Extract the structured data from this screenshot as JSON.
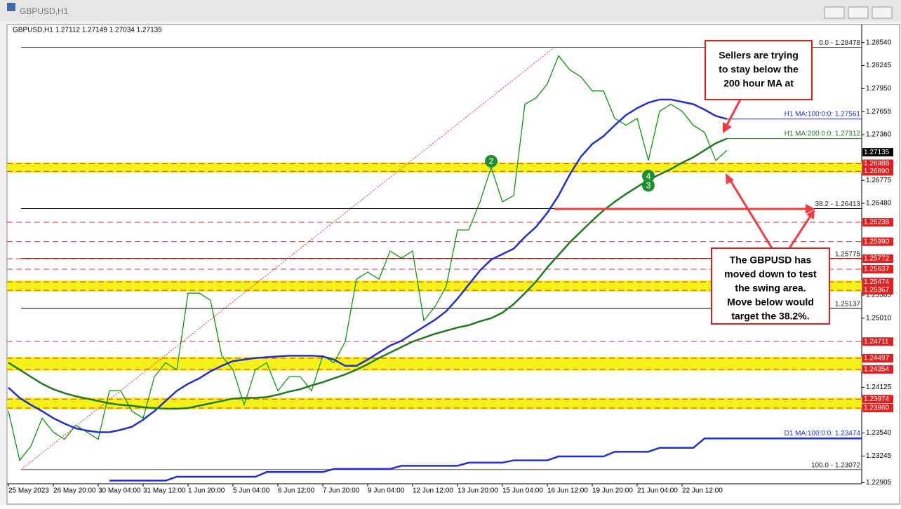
{
  "chart_data": {
    "type": "line",
    "info": "GBPUSD,H1  1.27112 1.27149 1.27034 1.27135",
    "categories": [
      "25 May 2023",
      null,
      null,
      null,
      "26 May 20:00",
      null,
      null,
      null,
      "30 May 04:00",
      null,
      null,
      null,
      "31 May 12:00",
      null,
      null,
      null,
      "1 Jun 20:00",
      null,
      null,
      null,
      "5 Jun 04:00",
      null,
      null,
      null,
      "6 Jun 12:00",
      null,
      null,
      null,
      "7 Jun 20:00",
      null,
      null,
      null,
      "9 Jun 04:00",
      null,
      null,
      null,
      "12 Jun 12:00",
      null,
      null,
      null,
      "13 Jun 20:00",
      null,
      null,
      null,
      "15 Jun 04:00",
      null,
      null,
      null,
      "16 Jun 12:00",
      null,
      null,
      null,
      "19 Jun 20:00",
      null,
      null,
      null,
      "21 Jun 04:00",
      null,
      null,
      null,
      "22 Jun 12:00",
      null,
      null,
      null,
      null
    ],
    "series": [
      {
        "name": "GBPUSD,H1",
        "color": "#0a9a0a",
        "values": [
          1.2382,
          1.2319,
          1.2337,
          1.2373,
          1.2355,
          1.2346,
          1.2364,
          1.2355,
          1.2346,
          1.2408,
          1.2408,
          1.2382,
          1.2373,
          1.2426,
          1.2444,
          1.2435,
          1.2533,
          1.2533,
          1.2524,
          1.2453,
          1.2435,
          1.239,
          1.2435,
          1.2444,
          1.2408,
          1.2426,
          1.2426,
          1.2408,
          1.2453,
          1.2444,
          1.2471,
          1.2551,
          1.256,
          1.2551,
          1.2587,
          1.2578,
          1.2587,
          1.2498,
          1.2516,
          1.2542,
          1.2614,
          1.2614,
          1.265,
          1.2694,
          1.265,
          1.2658,
          1.2775,
          1.2783,
          1.2801,
          1.2837,
          1.2819,
          1.281,
          1.2792,
          1.2792,
          1.2757,
          1.2748,
          1.2757,
          1.2703,
          1.2766,
          1.2775,
          1.2766,
          1.2748,
          1.2739,
          1.2703,
          1.2716
        ]
      },
      {
        "name": "H1 MA:100:0:0: 1.27561",
        "color": "#1f2fd0",
        "values": [
          1.2412,
          1.2399,
          1.239,
          1.2382,
          1.2373,
          1.2366,
          1.236,
          1.2357,
          1.2355,
          1.2355,
          1.2358,
          1.2362,
          1.2371,
          1.2382,
          1.2395,
          1.2408,
          1.2417,
          1.2424,
          1.2433,
          1.244,
          1.2446,
          1.2448,
          1.245,
          1.2451,
          1.2452,
          1.2453,
          1.2453,
          1.2453,
          1.2452,
          1.2448,
          1.244,
          1.244,
          1.2448,
          1.2457,
          1.2466,
          1.2472,
          1.2481,
          1.249,
          1.2499,
          1.251,
          1.2526,
          1.2544,
          1.2562,
          1.2576,
          1.2583,
          1.259,
          1.2605,
          1.2618,
          1.2636,
          1.2658,
          1.2685,
          1.2708,
          1.2724,
          1.2734,
          1.2748,
          1.2761,
          1.277,
          1.2777,
          1.2781,
          1.2781,
          1.2778,
          1.2775,
          1.2768,
          1.276,
          1.2756
        ]
      },
      {
        "name": "H1 MA:200:0:0: 1.27312",
        "color": "#1f7a1f",
        "values": [
          1.2444,
          1.2435,
          1.2426,
          1.2417,
          1.241,
          1.2405,
          1.2401,
          1.2398,
          1.2395,
          1.2392,
          1.239,
          1.2389,
          1.2387,
          1.2386,
          1.2385,
          1.2385,
          1.2386,
          1.2389,
          1.2392,
          1.2395,
          1.2398,
          1.2399,
          1.2399,
          1.24,
          1.2403,
          1.2407,
          1.241,
          1.2415,
          1.2419,
          1.2424,
          1.2429,
          1.2435,
          1.2442,
          1.245,
          1.2457,
          1.2464,
          1.2471,
          1.2476,
          1.2481,
          1.2485,
          1.2489,
          1.2492,
          1.2497,
          1.2501,
          1.2508,
          1.2519,
          1.2533,
          1.2548,
          1.2566,
          1.2582,
          1.2598,
          1.2612,
          1.2626,
          1.2639,
          1.265,
          1.266,
          1.2669,
          1.2678,
          1.2685,
          1.2692,
          1.27,
          1.2707,
          1.2716,
          1.2725,
          1.2731
        ]
      },
      {
        "name": "D1 MA:100:0:0: 1.23474",
        "color": "#1f2fd0",
        "values": [
          null,
          null,
          null,
          null,
          null,
          null,
          null,
          null,
          null,
          1.2293,
          1.2293,
          1.2293,
          1.2293,
          1.2293,
          1.2293,
          1.2298,
          1.2298,
          1.2298,
          1.2298,
          1.2298,
          1.2298,
          1.2298,
          1.2298,
          1.2304,
          1.2304,
          1.2304,
          1.2304,
          1.2304,
          1.2304,
          1.2308,
          1.2308,
          1.2308,
          1.2308,
          1.2308,
          1.2308,
          1.2312,
          1.2312,
          1.2312,
          1.2312,
          1.2312,
          1.2312,
          1.2316,
          1.2316,
          1.2316,
          1.2316,
          1.2319,
          1.2319,
          1.2319,
          1.2319,
          1.2324,
          1.2324,
          1.2324,
          1.2324,
          1.2324,
          1.233,
          1.233,
          1.233,
          1.233,
          1.2335,
          1.2335,
          1.2335,
          1.2335,
          1.2347,
          1.2347,
          1.2347
        ]
      }
    ],
    "ylim": [
      1.2289,
      1.2877
    ],
    "yticks": [
      {
        "value": 1.2854,
        "label": "1.28540"
      },
      {
        "value": 1.28245,
        "label": "1.28245"
      },
      {
        "value": 1.2795,
        "label": "1.27950"
      },
      {
        "value": 1.27655,
        "label": "1.27655"
      },
      {
        "value": 1.2736,
        "label": "1.27360"
      },
      {
        "value": 1.26775,
        "label": "1.26775"
      },
      {
        "value": 1.2648,
        "label": "1.26480"
      },
      {
        "value": 1.25305,
        "label": "1.25305"
      },
      {
        "value": 1.2501,
        "label": "1.25010"
      },
      {
        "value": 1.24125,
        "label": "1.24125"
      },
      {
        "value": 1.2354,
        "label": "1.23540"
      },
      {
        "value": 1.23245,
        "label": "1.23245"
      },
      {
        "value": 1.22905,
        "label": "1.22905"
      }
    ],
    "last_price": {
      "value": 1.27135,
      "label": "1.27135"
    },
    "price_levels": [
      {
        "value": 1.26988,
        "label": "1.26988"
      },
      {
        "value": 1.2689,
        "label": "1.26890"
      },
      {
        "value": 1.26238,
        "label": "1.26238"
      },
      {
        "value": 1.2599,
        "label": "1.25990"
      },
      {
        "value": 1.25772,
        "label": "1.25772"
      },
      {
        "value": 1.25637,
        "label": "1.25637"
      },
      {
        "value": 1.25474,
        "label": "1.25474"
      },
      {
        "value": 1.25367,
        "label": "1.25367"
      },
      {
        "value": 1.24711,
        "label": "1.24711"
      },
      {
        "value": 1.24497,
        "label": "1.24497"
      },
      {
        "value": 1.24354,
        "label": "1.24354"
      },
      {
        "value": 1.23974,
        "label": "1.23974"
      },
      {
        "value": 1.2386,
        "label": "1.23860"
      }
    ],
    "zones": [
      {
        "from": 1.26988,
        "to": 1.2689
      },
      {
        "from": 1.25474,
        "to": 1.25367
      },
      {
        "from": 1.24497,
        "to": 1.24354
      },
      {
        "from": 1.23974,
        "to": 1.2386
      }
    ],
    "lines": [
      {
        "value": 1.28478,
        "label": "0.0 - 1.28478",
        "color": "#555555"
      },
      {
        "value": 1.26413,
        "label": "38.2 - 1.26413",
        "color": "#000000"
      },
      {
        "value": 1.25775,
        "label": "1.25775",
        "color": "#7a0000"
      },
      {
        "value": 1.25137,
        "label": "1.25137",
        "color": "#000000"
      },
      {
        "value": 1.23072,
        "label": "100.0 - 1.23072",
        "color": "#555555"
      }
    ],
    "markers": [
      {
        "label": "2",
        "category": 43,
        "value": 1.2702
      },
      {
        "label": "3",
        "category": 57,
        "value": 1.2671
      },
      {
        "label": "4",
        "category": 57,
        "value": 1.2683
      }
    ],
    "annotations": [
      {
        "lines": [
          "Sellers are trying",
          "to stay below the",
          "200 hour MA at"
        ]
      },
      {
        "lines": [
          "The GBPUSD has",
          "moved down to test",
          "the swing area.",
          "Move below would",
          "target the 38.2%."
        ]
      }
    ]
  }
}
